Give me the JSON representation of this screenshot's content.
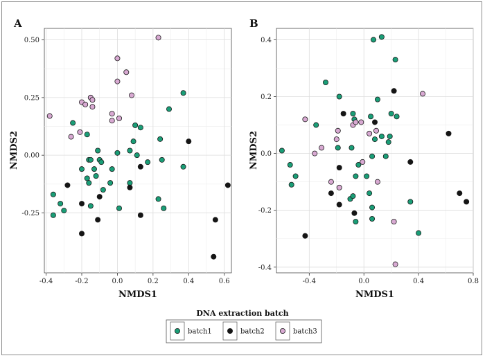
{
  "colors": {
    "batch1": "#1a9e77",
    "batch2": "#151515",
    "batch3": "#d8a9d2"
  },
  "legend": {
    "title": "DNA extraction batch",
    "items": [
      {
        "key": "batch1",
        "label": "batch1"
      },
      {
        "key": "batch2",
        "label": "batch2"
      },
      {
        "key": "batch3",
        "label": "batch3"
      }
    ]
  },
  "chart_data": [
    {
      "type": "scatter",
      "panel": "A",
      "xlabel": "NMDS1",
      "ylabel": "NMDS2",
      "xlim": [
        -0.41,
        0.64
      ],
      "ylim": [
        -0.51,
        0.55
      ],
      "xticks": [
        -0.4,
        -0.2,
        0.0,
        0.2,
        0.4,
        0.6
      ],
      "xtick_labels": [
        "-0.4",
        "-0.2",
        "0.0",
        "0.2",
        "0.4",
        "0.6"
      ],
      "yticks": [
        -0.25,
        0.0,
        0.25,
        0.5
      ],
      "ytick_labels": [
        "-0.25",
        "0.00",
        "0.25",
        "0.50"
      ],
      "grid": true,
      "series": [
        {
          "name": "batch1",
          "points": [
            [
              -0.36,
              -0.17
            ],
            [
              -0.36,
              -0.26
            ],
            [
              -0.32,
              -0.21
            ],
            [
              -0.3,
              -0.24
            ],
            [
              -0.25,
              0.14
            ],
            [
              -0.2,
              -0.06
            ],
            [
              -0.17,
              0.09
            ],
            [
              -0.17,
              -0.1
            ],
            [
              -0.16,
              -0.02
            ],
            [
              -0.16,
              -0.12
            ],
            [
              -0.15,
              -0.02
            ],
            [
              -0.15,
              -0.22
            ],
            [
              -0.13,
              -0.06
            ],
            [
              -0.12,
              -0.09
            ],
            [
              -0.11,
              0.02
            ],
            [
              -0.1,
              -0.02
            ],
            [
              -0.09,
              -0.03
            ],
            [
              -0.08,
              -0.15
            ],
            [
              -0.04,
              -0.12
            ],
            [
              -0.03,
              -0.06
            ],
            [
              0.0,
              0.01
            ],
            [
              0.01,
              -0.23
            ],
            [
              0.07,
              0.02
            ],
            [
              0.07,
              -0.12
            ],
            [
              0.09,
              0.06
            ],
            [
              0.1,
              0.13
            ],
            [
              0.11,
              0.0
            ],
            [
              0.13,
              0.12
            ],
            [
              0.17,
              -0.03
            ],
            [
              0.23,
              -0.19
            ],
            [
              0.24,
              0.07
            ],
            [
              0.25,
              -0.02
            ],
            [
              0.26,
              -0.23
            ],
            [
              0.29,
              0.2
            ],
            [
              0.37,
              0.27
            ],
            [
              0.37,
              -0.05
            ]
          ]
        },
        {
          "name": "batch2",
          "points": [
            [
              -0.28,
              -0.13
            ],
            [
              -0.2,
              -0.21
            ],
            [
              -0.2,
              -0.34
            ],
            [
              -0.11,
              -0.28
            ],
            [
              -0.1,
              -0.18
            ],
            [
              0.07,
              -0.14
            ],
            [
              0.13,
              -0.05
            ],
            [
              0.13,
              -0.26
            ],
            [
              0.4,
              0.06
            ],
            [
              0.54,
              -0.44
            ],
            [
              0.55,
              -0.28
            ],
            [
              0.62,
              -0.13
            ]
          ]
        },
        {
          "name": "batch3",
          "points": [
            [
              -0.38,
              0.17
            ],
            [
              -0.26,
              0.08
            ],
            [
              -0.21,
              0.1
            ],
            [
              -0.2,
              0.23
            ],
            [
              -0.18,
              0.22
            ],
            [
              -0.15,
              0.25
            ],
            [
              -0.14,
              0.24
            ],
            [
              -0.14,
              0.21
            ],
            [
              -0.03,
              0.18
            ],
            [
              -0.03,
              0.15
            ],
            [
              0.0,
              0.32
            ],
            [
              0.0,
              0.42
            ],
            [
              0.01,
              0.16
            ],
            [
              0.05,
              0.36
            ],
            [
              0.08,
              0.26
            ],
            [
              0.23,
              0.51
            ]
          ]
        }
      ]
    },
    {
      "type": "scatter",
      "panel": "B",
      "xlabel": "NMDS1",
      "ylabel": "NMDS2",
      "xlim": [
        -0.64,
        0.8
      ],
      "ylim": [
        -0.42,
        0.44
      ],
      "xticks": [
        -0.4,
        0.0,
        0.4,
        0.8
      ],
      "xtick_labels": [
        "-0.4",
        "0.0",
        "0.4",
        "0.8"
      ],
      "yticks": [
        -0.4,
        -0.2,
        0.0,
        0.2,
        0.4
      ],
      "ytick_labels": [
        "-0.4",
        "-0.2",
        "0.0",
        "0.2",
        "0.4"
      ],
      "grid": true,
      "series": [
        {
          "name": "batch1",
          "points": [
            [
              -0.6,
              0.01
            ],
            [
              -0.54,
              -0.04
            ],
            [
              -0.53,
              -0.11
            ],
            [
              -0.5,
              -0.08
            ],
            [
              -0.35,
              0.1
            ],
            [
              -0.28,
              0.25
            ],
            [
              -0.19,
              0.02
            ],
            [
              -0.18,
              0.2
            ],
            [
              -0.1,
              -0.16
            ],
            [
              -0.09,
              0.02
            ],
            [
              -0.08,
              0.14
            ],
            [
              -0.08,
              -0.15
            ],
            [
              -0.07,
              0.12
            ],
            [
              -0.06,
              -0.08
            ],
            [
              -0.06,
              -0.24
            ],
            [
              -0.04,
              -0.04
            ],
            [
              0.02,
              -0.08
            ],
            [
              0.04,
              -0.14
            ],
            [
              0.05,
              0.13
            ],
            [
              0.06,
              -0.23
            ],
            [
              0.06,
              -0.01
            ],
            [
              0.06,
              -0.19
            ],
            [
              0.07,
              0.4
            ],
            [
              0.08,
              0.05
            ],
            [
              0.1,
              0.19
            ],
            [
              0.13,
              0.06
            ],
            [
              0.13,
              0.41
            ],
            [
              0.16,
              -0.01
            ],
            [
              0.18,
              0.04
            ],
            [
              0.19,
              0.06
            ],
            [
              0.2,
              0.14
            ],
            [
              0.23,
              0.33
            ],
            [
              0.24,
              0.13
            ],
            [
              0.34,
              -0.17
            ],
            [
              0.4,
              -0.28
            ]
          ]
        },
        {
          "name": "batch2",
          "points": [
            [
              -0.43,
              -0.29
            ],
            [
              -0.24,
              -0.14
            ],
            [
              -0.18,
              -0.05
            ],
            [
              -0.18,
              -0.18
            ],
            [
              -0.15,
              0.14
            ],
            [
              -0.07,
              -0.21
            ],
            [
              0.08,
              0.11
            ],
            [
              0.22,
              0.22
            ],
            [
              0.34,
              -0.03
            ],
            [
              0.62,
              0.07
            ],
            [
              0.7,
              -0.14
            ],
            [
              0.75,
              -0.17
            ]
          ]
        },
        {
          "name": "batch3",
          "points": [
            [
              -0.43,
              0.12
            ],
            [
              -0.36,
              0.0
            ],
            [
              -0.31,
              0.02
            ],
            [
              -0.24,
              -0.1
            ],
            [
              -0.2,
              0.05
            ],
            [
              -0.19,
              0.08
            ],
            [
              -0.18,
              -0.12
            ],
            [
              -0.08,
              0.1
            ],
            [
              -0.06,
              0.11
            ],
            [
              -0.02,
              0.11
            ],
            [
              -0.01,
              -0.03
            ],
            [
              0.04,
              0.07
            ],
            [
              0.09,
              0.08
            ],
            [
              0.1,
              -0.1
            ],
            [
              0.22,
              -0.24
            ],
            [
              0.23,
              -0.39
            ],
            [
              0.43,
              0.21
            ]
          ]
        }
      ]
    }
  ]
}
